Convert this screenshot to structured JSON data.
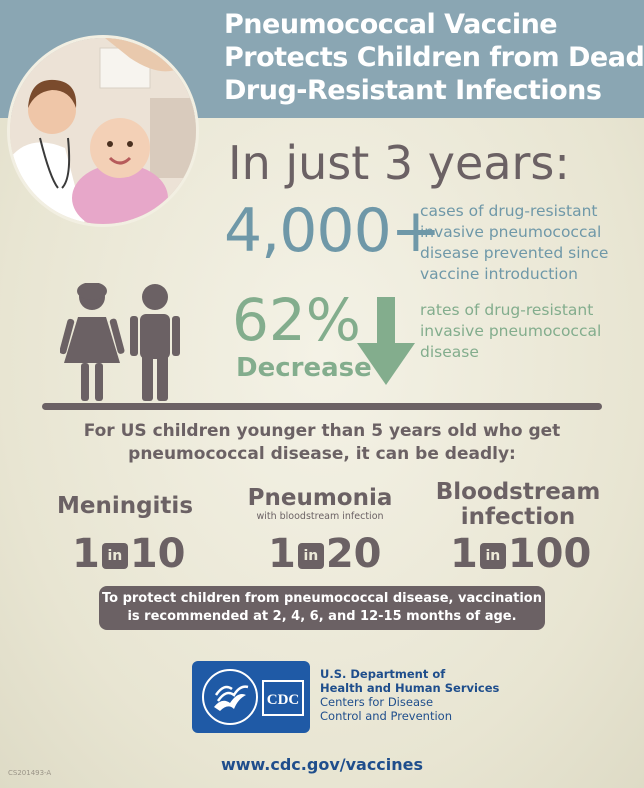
{
  "title_lines": [
    "Pneumococcal Vaccine",
    "Protects Children from Deadly",
    "Drug-Resistant Infections"
  ],
  "headline": "In just 3 years:",
  "cases": {
    "value": "4,000+",
    "lines": [
      "cases of drug-resistant",
      "invasive pneumococcal",
      "disease prevented since",
      "vaccine introduction"
    ]
  },
  "decrease": {
    "value": "62%",
    "label": "Decrease",
    "lines": [
      "rates of drug-resistant",
      "invasive pneumococcal",
      "disease"
    ]
  },
  "children_text": [
    "For US children younger than 5 years old who get",
    "pneumococcal disease, it can be deadly:"
  ],
  "stats": [
    {
      "name_lines": [
        "Meningitis"
      ],
      "sub": "",
      "left": "1",
      "in": "in",
      "right": "10"
    },
    {
      "name_lines": [
        "Pneumonia"
      ],
      "sub": "with bloodstream infection",
      "left": "1",
      "in": "in",
      "right": "20"
    },
    {
      "name_lines": [
        "Bloodstream",
        "infection"
      ],
      "sub": "",
      "left": "1",
      "in": "in",
      "right": "100"
    }
  ],
  "protect_lines": [
    "To protect children from pneumococcal disease, vaccination",
    "is recommended at 2, 4, 6, and 12-15 months of age."
  ],
  "logo": {
    "cdc": "CDC"
  },
  "dept_lines": [
    "U.S. Department of",
    "Health and Human Services",
    "Centers for Disease",
    "Control and Prevention"
  ],
  "url": "www.cdc.gov/vaccines",
  "code": "CS201493-A",
  "colors": {
    "banner": "#8aa6b3",
    "blue_text": "#6f98a8",
    "green_text": "#83ad8d",
    "dark": "#6b6164",
    "hhs_blue": "#1f5aa6"
  }
}
